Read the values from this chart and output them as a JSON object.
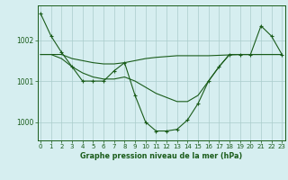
{
  "title": "Graphe pression niveau de la mer (hPa)",
  "bg_color": "#d6eef0",
  "grid_color": "#aacccc",
  "line_color": "#1a5c1a",
  "x_ticks": [
    0,
    1,
    2,
    3,
    4,
    5,
    6,
    7,
    8,
    9,
    10,
    11,
    12,
    13,
    14,
    15,
    16,
    17,
    18,
    19,
    20,
    21,
    22,
    23
  ],
  "y_ticks": [
    1000,
    1001,
    1002
  ],
  "ylim": [
    999.55,
    1002.85
  ],
  "xlim": [
    -0.3,
    23.3
  ],
  "series1": [
    1002.65,
    1002.1,
    1001.7,
    1001.35,
    1001.0,
    1001.0,
    1001.0,
    1001.25,
    1001.45,
    1000.65,
    1000.0,
    999.78,
    999.78,
    999.82,
    1000.05,
    1000.45,
    1001.0,
    1001.35,
    1001.65,
    1001.65,
    1001.65,
    1002.35,
    1002.1,
    1001.65
  ],
  "series2": [
    1001.65,
    1001.65,
    1001.65,
    1001.55,
    1001.5,
    1001.45,
    1001.42,
    1001.42,
    1001.45,
    1001.5,
    1001.55,
    1001.58,
    1001.6,
    1001.62,
    1001.62,
    1001.62,
    1001.62,
    1001.63,
    1001.64,
    1001.65,
    1001.65,
    1001.65,
    1001.65,
    1001.65
  ],
  "series3": [
    1001.65,
    1001.65,
    1001.55,
    1001.35,
    1001.2,
    1001.1,
    1001.05,
    1001.05,
    1001.1,
    1001.0,
    1000.85,
    1000.7,
    1000.6,
    1000.5,
    1000.5,
    1000.65,
    1001.0,
    1001.35,
    1001.65,
    1001.65,
    1001.65,
    1001.65,
    1001.65,
    1001.65
  ]
}
